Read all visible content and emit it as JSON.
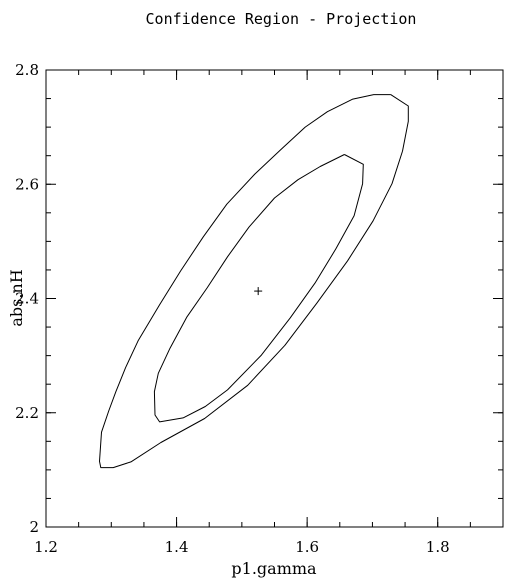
{
  "chart_data": {
    "type": "line",
    "title": "Confidence Region - Projection",
    "xlabel": "p1.gamma",
    "ylabel": "abs.nH",
    "xlim": [
      1.2,
      1.9
    ],
    "ylim": [
      2.0,
      2.8
    ],
    "x_ticks": [
      {
        "value": 1.2,
        "label": "1.2"
      },
      {
        "value": 1.4,
        "label": "1.4"
      },
      {
        "value": 1.6,
        "label": "1.6"
      },
      {
        "value": 1.8,
        "label": "1.8"
      }
    ],
    "y_ticks": [
      {
        "value": 2.0,
        "label": "2"
      },
      {
        "value": 2.2,
        "label": "2.2"
      },
      {
        "value": 2.4,
        "label": "2.4"
      },
      {
        "value": 2.6,
        "label": "2.6"
      },
      {
        "value": 2.8,
        "label": "2.8"
      }
    ],
    "minor_step_x": 0.05,
    "minor_step_y": 0.05,
    "grid": false,
    "best_fit": {
      "x": 1.525,
      "y": 2.413
    },
    "series": [
      {
        "contour": "inner",
        "points": [
          [
            1.657,
            2.652
          ],
          [
            1.686,
            2.635
          ],
          [
            1.685,
            2.601
          ],
          [
            1.672,
            2.545
          ],
          [
            1.644,
            2.487
          ],
          [
            1.612,
            2.427
          ],
          [
            1.574,
            2.366
          ],
          [
            1.53,
            2.301
          ],
          [
            1.478,
            2.24
          ],
          [
            1.444,
            2.211
          ],
          [
            1.41,
            2.191
          ],
          [
            1.374,
            2.184
          ],
          [
            1.367,
            2.196
          ],
          [
            1.366,
            2.237
          ],
          [
            1.372,
            2.269
          ],
          [
            1.39,
            2.313
          ],
          [
            1.416,
            2.368
          ],
          [
            1.447,
            2.419
          ],
          [
            1.478,
            2.473
          ],
          [
            1.511,
            2.525
          ],
          [
            1.55,
            2.576
          ],
          [
            1.586,
            2.608
          ],
          [
            1.62,
            2.631
          ],
          [
            1.657,
            2.652
          ]
        ]
      },
      {
        "contour": "outer",
        "points": [
          [
            1.728,
            2.757
          ],
          [
            1.755,
            2.737
          ],
          [
            1.755,
            2.71
          ],
          [
            1.746,
            2.658
          ],
          [
            1.73,
            2.601
          ],
          [
            1.701,
            2.536
          ],
          [
            1.662,
            2.466
          ],
          [
            1.615,
            2.392
          ],
          [
            1.566,
            2.318
          ],
          [
            1.509,
            2.248
          ],
          [
            1.443,
            2.19
          ],
          [
            1.376,
            2.148
          ],
          [
            1.33,
            2.114
          ],
          [
            1.303,
            2.104
          ],
          [
            1.284,
            2.104
          ],
          [
            1.282,
            2.115
          ],
          [
            1.285,
            2.166
          ],
          [
            1.296,
            2.203
          ],
          [
            1.307,
            2.237
          ],
          [
            1.322,
            2.279
          ],
          [
            1.341,
            2.326
          ],
          [
            1.374,
            2.389
          ],
          [
            1.406,
            2.448
          ],
          [
            1.441,
            2.508
          ],
          [
            1.477,
            2.565
          ],
          [
            1.52,
            2.618
          ],
          [
            1.559,
            2.66
          ],
          [
            1.597,
            2.7
          ],
          [
            1.631,
            2.727
          ],
          [
            1.67,
            2.749
          ],
          [
            1.702,
            2.757
          ],
          [
            1.728,
            2.757
          ]
        ]
      }
    ]
  }
}
